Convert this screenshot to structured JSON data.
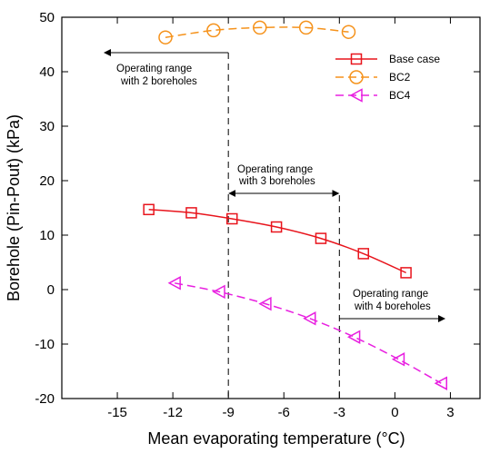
{
  "chart_data": {
    "type": "line",
    "xlabel": "Mean evaporating temperature (°C)",
    "ylabel": "Borehole (Pin-Pout) (kPa)",
    "xlim": [
      -18,
      4.6
    ],
    "ylim": [
      -20,
      50
    ],
    "xticks": [
      -15,
      -12,
      -9,
      -6,
      -3,
      0,
      3
    ],
    "yticks": [
      -20,
      -10,
      0,
      10,
      20,
      30,
      40,
      50
    ],
    "grid": false,
    "legend_position": "top-right",
    "series": [
      {
        "name": "Base case",
        "color": "#e8141c",
        "line_style": "solid",
        "marker": "square",
        "x": [
          -13.3,
          -11.0,
          -8.8,
          -6.4,
          -4.0,
          -1.7,
          0.6
        ],
        "y": [
          14.7,
          14.1,
          13.0,
          11.5,
          9.4,
          6.6,
          3.1
        ]
      },
      {
        "name": "BC2",
        "color": "#f5921b",
        "line_style": "dashed",
        "marker": "circle",
        "x": [
          -12.4,
          -9.8,
          -7.3,
          -4.8,
          -2.5
        ],
        "y": [
          46.3,
          47.6,
          48.1,
          48.1,
          47.3
        ]
      },
      {
        "name": "BC4",
        "color": "#e820e0",
        "line_style": "dashed",
        "marker": "triangle-left",
        "x": [
          -11.9,
          -9.5,
          -7.0,
          -4.6,
          -2.2,
          0.2,
          2.5
        ],
        "y": [
          1.2,
          -0.4,
          -2.6,
          -5.3,
          -8.7,
          -12.8,
          -17.2
        ]
      }
    ],
    "annotations": [
      {
        "id": "range2",
        "lines": [
          "Operating range",
          "with 2 boreholes"
        ]
      },
      {
        "id": "range3",
        "lines": [
          "Operating range",
          "with 3 boreholes"
        ]
      },
      {
        "id": "range4",
        "lines": [
          "Operating range",
          "with 4 boreholes"
        ]
      }
    ]
  }
}
